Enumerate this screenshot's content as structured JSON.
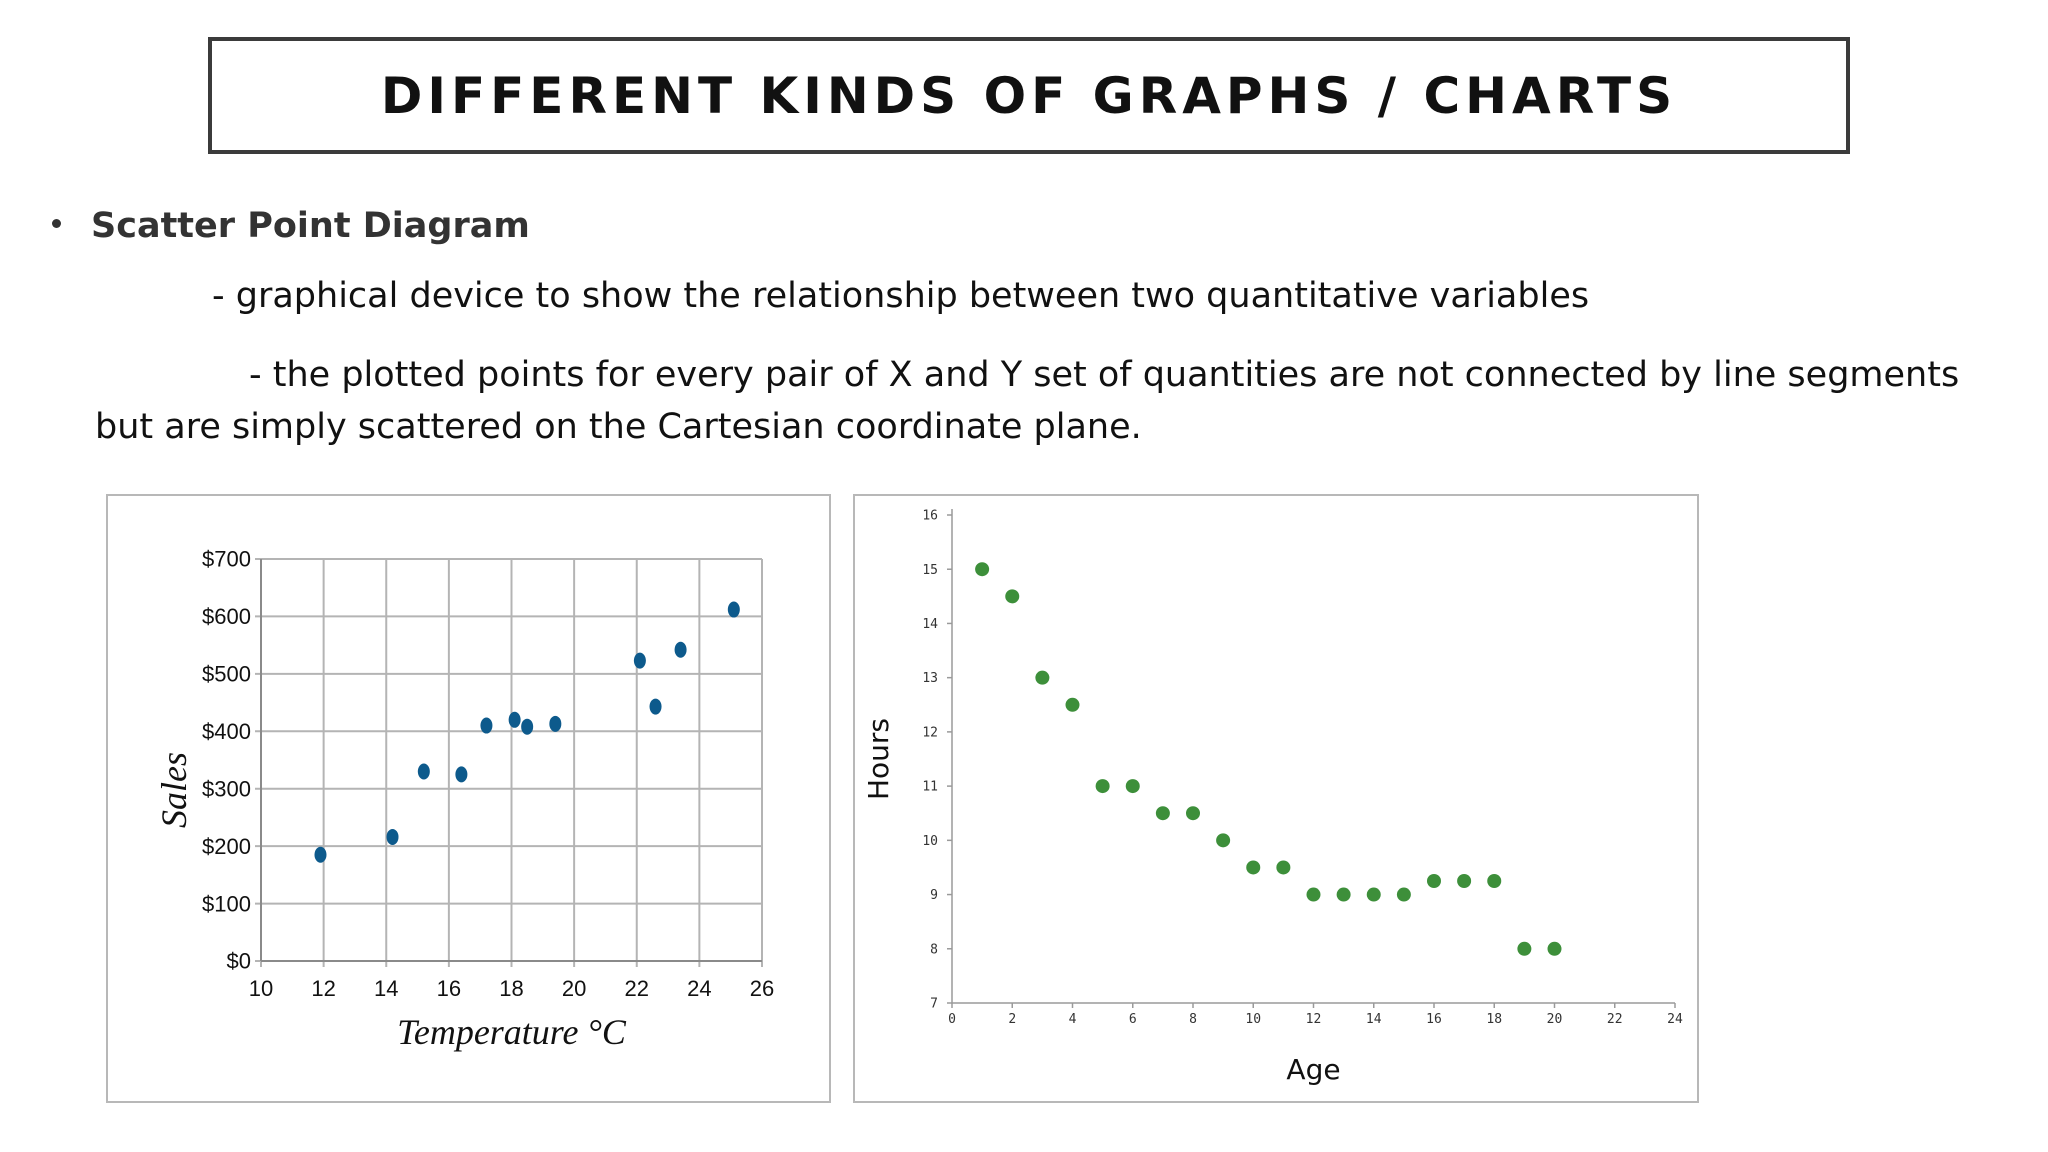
{
  "slide": {
    "title": "DIFFERENT KINDS OF GRAPHS / CHARTS",
    "bullet_heading": "Scatter Point Diagram",
    "line1": "- graphical device to show the relationship between two quantitative variables",
    "line2": "- the plotted points for every pair of X and Y set of quantities are not connected by line segments but are simply scattered on the Cartesian coordinate plane."
  },
  "chart_data": [
    {
      "type": "scatter",
      "title": "",
      "xlabel": "Temperature °C",
      "ylabel": "Sales",
      "xlim": [
        10,
        26
      ],
      "ylim": [
        0,
        700
      ],
      "xticks": [
        "10",
        "12",
        "14",
        "16",
        "18",
        "20",
        "22",
        "24",
        "26"
      ],
      "yticks": [
        "$0",
        "$100",
        "$200",
        "$300",
        "$400",
        "$500",
        "$600",
        "$700"
      ],
      "grid": true,
      "color": "#0d5a8c",
      "points": [
        {
          "x": 11.9,
          "y": 185
        },
        {
          "x": 14.2,
          "y": 216
        },
        {
          "x": 15.2,
          "y": 330
        },
        {
          "x": 16.4,
          "y": 325
        },
        {
          "x": 17.2,
          "y": 410
        },
        {
          "x": 18.1,
          "y": 420
        },
        {
          "x": 18.5,
          "y": 408
        },
        {
          "x": 19.4,
          "y": 413
        },
        {
          "x": 22.1,
          "y": 523
        },
        {
          "x": 22.6,
          "y": 443
        },
        {
          "x": 23.4,
          "y": 542
        },
        {
          "x": 25.1,
          "y": 612
        }
      ]
    },
    {
      "type": "scatter",
      "title": "",
      "xlabel": "Age",
      "ylabel": "Hours",
      "xlim": [
        0,
        24
      ],
      "ylim": [
        7,
        16
      ],
      "xticks": [
        "0",
        "2",
        "4",
        "6",
        "8",
        "10",
        "12",
        "14",
        "16",
        "18",
        "20",
        "22",
        "24"
      ],
      "yticks": [
        "7",
        "8",
        "9",
        "10",
        "11",
        "12",
        "13",
        "14",
        "15",
        "16"
      ],
      "grid": false,
      "color": "#3d8f3a",
      "points": [
        {
          "x": 1,
          "y": 15
        },
        {
          "x": 2,
          "y": 14.5
        },
        {
          "x": 3,
          "y": 13
        },
        {
          "x": 4,
          "y": 12.5
        },
        {
          "x": 5,
          "y": 11
        },
        {
          "x": 6,
          "y": 11
        },
        {
          "x": 7,
          "y": 10.5
        },
        {
          "x": 8,
          "y": 10.5
        },
        {
          "x": 9,
          "y": 10
        },
        {
          "x": 10,
          "y": 9.5
        },
        {
          "x": 11,
          "y": 9.5
        },
        {
          "x": 12,
          "y": 9
        },
        {
          "x": 13,
          "y": 9
        },
        {
          "x": 14,
          "y": 9
        },
        {
          "x": 15,
          "y": 9
        },
        {
          "x": 16,
          "y": 9.25
        },
        {
          "x": 17,
          "y": 9.25
        },
        {
          "x": 18,
          "y": 9.25
        },
        {
          "x": 19,
          "y": 8
        },
        {
          "x": 20,
          "y": 8
        }
      ]
    }
  ]
}
